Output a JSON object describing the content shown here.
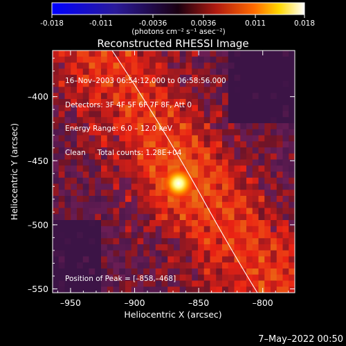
{
  "colorbar": {
    "ticks": [
      "-0.018",
      "-0.011",
      "-0.0036",
      "0.0036",
      "0.011",
      "0.018"
    ],
    "unit_label": "(photons cm⁻² s⁻¹ asec⁻²)"
  },
  "chart_data": {
    "type": "heatmap",
    "title": "Reconstructed RHESSI Image",
    "xlabel": "Heliocentric X (arcsec)",
    "ylabel": "Heliocentric Y (arcsec)",
    "xlim": [
      -964,
      -775
    ],
    "ylim": [
      -553,
      -364
    ],
    "x_ticks": [
      -950,
      -900,
      -850,
      -800
    ],
    "y_ticks": [
      -400,
      -450,
      -500,
      -550
    ],
    "colorscale_range": [
      -0.018,
      0.018
    ],
    "peak": {
      "x": -858,
      "y": -468
    }
  },
  "info": {
    "line1": "16–Nov–2003 06:54:12.000 to 06:58:56.000",
    "line2": "Detectors: 3F 4F 5F 6F 7F 8F, Att 0",
    "line3": "Energy Range: 6.0 – 12.0 keV",
    "line4": "Clean     Total counts: 1.28E+04"
  },
  "peak_label": "Position of Peak = [–858,–468]",
  "footer_date": "7–May–2022 00:50"
}
